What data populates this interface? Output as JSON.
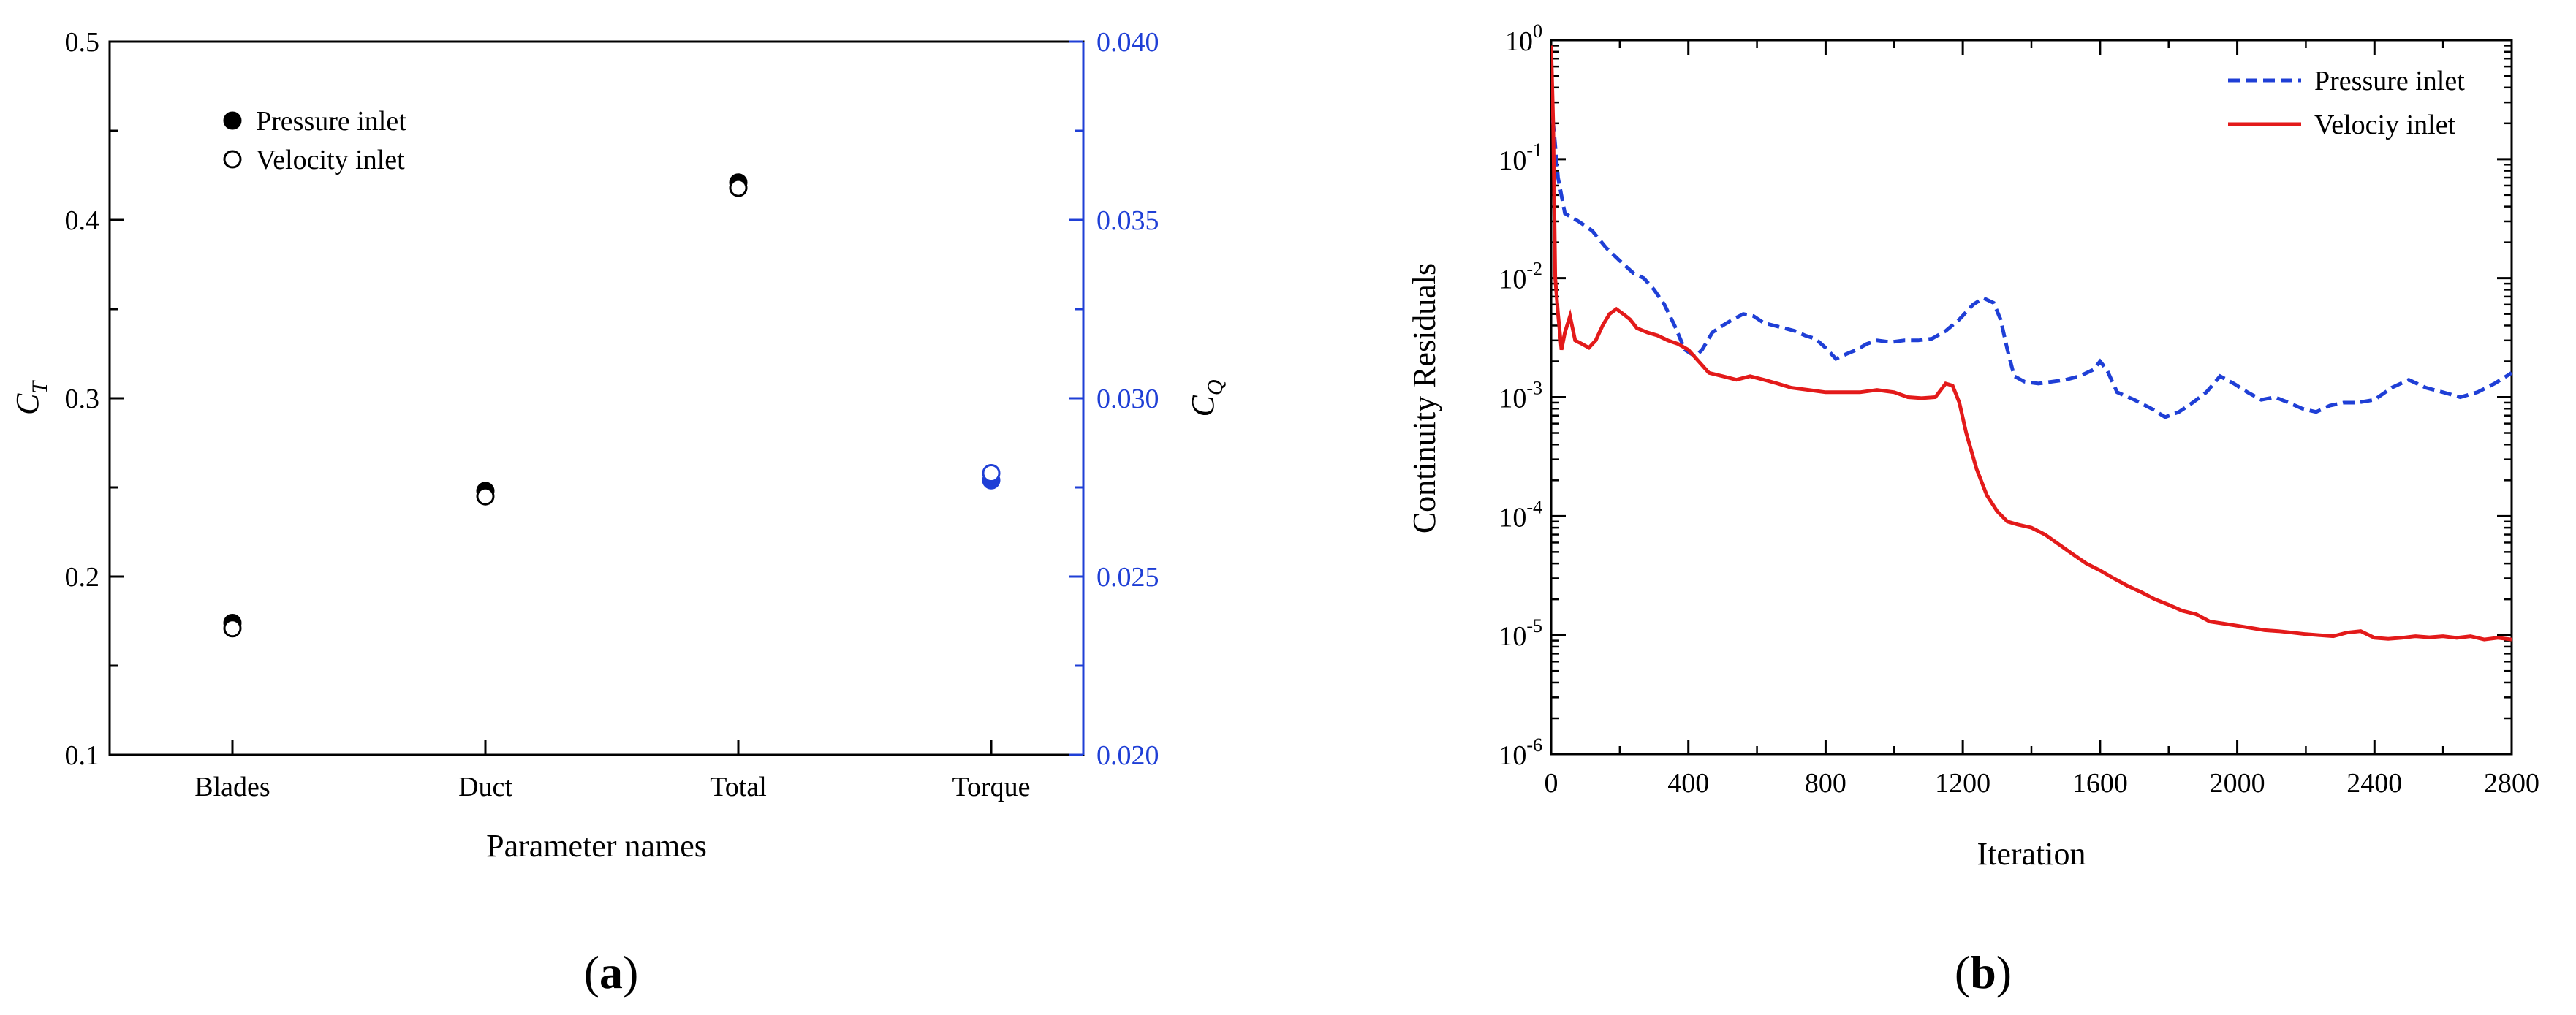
{
  "chart_data": [
    {
      "type": "scatter",
      "panel": "(a)",
      "panel_letter": "a",
      "xlabel": "Parameter names",
      "ylabel": "C",
      "ylabel_sub": "T",
      "y2label": "C",
      "y2label_sub": "Q",
      "categories": [
        "Blades",
        "Duct",
        "Total",
        "Torque"
      ],
      "ylim": [
        0.1,
        0.5
      ],
      "yticks": [
        "0.1",
        "0.2",
        "0.3",
        "0.4",
        "0.5"
      ],
      "y2lim": [
        0.02,
        0.04
      ],
      "y2ticks": [
        "0.020",
        "0.025",
        "0.030",
        "0.035",
        "0.040"
      ],
      "legend_position": "top-left",
      "series": [
        {
          "name": "Pressure inlet",
          "marker": "filled-circle",
          "points": [
            {
              "category": "Blades",
              "y": 0.174,
              "axis": "left"
            },
            {
              "category": "Duct",
              "y": 0.248,
              "axis": "left"
            },
            {
              "category": "Total",
              "y": 0.421,
              "axis": "left"
            },
            {
              "category": "Torque",
              "y": 0.0277,
              "axis": "right"
            }
          ]
        },
        {
          "name": "Velocity inlet",
          "marker": "open-circle",
          "points": [
            {
              "category": "Blades",
              "y": 0.171,
              "axis": "left"
            },
            {
              "category": "Duct",
              "y": 0.245,
              "axis": "left"
            },
            {
              "category": "Total",
              "y": 0.418,
              "axis": "left"
            },
            {
              "category": "Torque",
              "y": 0.0279,
              "axis": "right"
            }
          ]
        }
      ],
      "colors": {
        "left_axis": "#000000",
        "right_axis": "#1f3fd6",
        "torque_points": "#1f3fd6"
      }
    },
    {
      "type": "line",
      "panel": "(b)",
      "panel_letter": "b",
      "xlabel": "Iteration",
      "ylabel": "Continuity Residuals",
      "xlim": [
        0,
        2800
      ],
      "xticks": [
        "0",
        "400",
        "800",
        "1200",
        "1600",
        "2000",
        "2400",
        "2800"
      ],
      "yscale": "log",
      "ylim": [
        1e-06,
        1
      ],
      "ytick_exponents": [
        "-6",
        "-5",
        "-4",
        "-3",
        "-2",
        "-1",
        "0"
      ],
      "ytick_base": "10",
      "legend_position": "top-right",
      "series": [
        {
          "name": "Pressure inlet",
          "style": "dashed",
          "color": "#1f3fd6",
          "points": [
            [
              0,
              0.3
            ],
            [
              10,
              0.15
            ],
            [
              20,
              0.07
            ],
            [
              40,
              0.035
            ],
            [
              80,
              0.03
            ],
            [
              120,
              0.025
            ],
            [
              160,
              0.018
            ],
            [
              200,
              0.014
            ],
            [
              240,
              0.011
            ],
            [
              270,
              0.01
            ],
            [
              300,
              0.008
            ],
            [
              330,
              0.006
            ],
            [
              360,
              0.004
            ],
            [
              390,
              0.0025
            ],
            [
              420,
              0.0022
            ],
            [
              440,
              0.0025
            ],
            [
              470,
              0.0035
            ],
            [
              500,
              0.004
            ],
            [
              530,
              0.0045
            ],
            [
              560,
              0.005
            ],
            [
              590,
              0.0048
            ],
            [
              620,
              0.0042
            ],
            [
              650,
              0.004
            ],
            [
              680,
              0.0038
            ],
            [
              710,
              0.0036
            ],
            [
              740,
              0.0033
            ],
            [
              770,
              0.0031
            ],
            [
              800,
              0.0026
            ],
            [
              830,
              0.0021
            ],
            [
              860,
              0.0023
            ],
            [
              890,
              0.0025
            ],
            [
              920,
              0.0028
            ],
            [
              950,
              0.003
            ],
            [
              990,
              0.0029
            ],
            [
              1030,
              0.003
            ],
            [
              1070,
              0.003
            ],
            [
              1110,
              0.0031
            ],
            [
              1150,
              0.0036
            ],
            [
              1190,
              0.0045
            ],
            [
              1230,
              0.006
            ],
            [
              1260,
              0.0068
            ],
            [
              1290,
              0.0062
            ],
            [
              1310,
              0.0045
            ],
            [
              1330,
              0.0025
            ],
            [
              1350,
              0.0015
            ],
            [
              1380,
              0.00135
            ],
            [
              1420,
              0.0013
            ],
            [
              1460,
              0.00135
            ],
            [
              1500,
              0.0014
            ],
            [
              1540,
              0.0015
            ],
            [
              1580,
              0.0017
            ],
            [
              1600,
              0.002
            ],
            [
              1620,
              0.0017
            ],
            [
              1650,
              0.0011
            ],
            [
              1700,
              0.00095
            ],
            [
              1750,
              0.0008
            ],
            [
              1790,
              0.00068
            ],
            [
              1830,
              0.00075
            ],
            [
              1870,
              0.0009
            ],
            [
              1910,
              0.0011
            ],
            [
              1950,
              0.0015
            ],
            [
              1990,
              0.0013
            ],
            [
              2030,
              0.0011
            ],
            [
              2070,
              0.00095
            ],
            [
              2110,
              0.001
            ],
            [
              2150,
              0.0009
            ],
            [
              2190,
              0.0008
            ],
            [
              2230,
              0.00075
            ],
            [
              2270,
              0.00085
            ],
            [
              2310,
              0.0009
            ],
            [
              2350,
              0.0009
            ],
            [
              2400,
              0.00095
            ],
            [
              2450,
              0.0012
            ],
            [
              2500,
              0.0014
            ],
            [
              2550,
              0.0012
            ],
            [
              2600,
              0.0011
            ],
            [
              2650,
              0.001
            ],
            [
              2700,
              0.0011
            ],
            [
              2750,
              0.0013
            ],
            [
              2800,
              0.0016
            ]
          ]
        },
        {
          "name": "Velociy inlet",
          "style": "solid",
          "color": "#e31a1a",
          "points": [
            [
              0,
              0.9
            ],
            [
              6,
              0.2
            ],
            [
              12,
              0.01
            ],
            [
              20,
              0.005
            ],
            [
              30,
              0.0025
            ],
            [
              40,
              0.0035
            ],
            [
              55,
              0.0048
            ],
            [
              70,
              0.003
            ],
            [
              90,
              0.0028
            ],
            [
              110,
              0.0026
            ],
            [
              130,
              0.003
            ],
            [
              150,
              0.004
            ],
            [
              170,
              0.005
            ],
            [
              190,
              0.0055
            ],
            [
              210,
              0.005
            ],
            [
              230,
              0.0045
            ],
            [
              250,
              0.0038
            ],
            [
              280,
              0.0035
            ],
            [
              310,
              0.0033
            ],
            [
              340,
              0.003
            ],
            [
              370,
              0.0028
            ],
            [
              400,
              0.0025
            ],
            [
              430,
              0.002
            ],
            [
              460,
              0.0016
            ],
            [
              500,
              0.0015
            ],
            [
              540,
              0.0014
            ],
            [
              580,
              0.0015
            ],
            [
              620,
              0.0014
            ],
            [
              660,
              0.0013
            ],
            [
              700,
              0.0012
            ],
            [
              750,
              0.00115
            ],
            [
              800,
              0.0011
            ],
            [
              850,
              0.0011
            ],
            [
              900,
              0.0011
            ],
            [
              950,
              0.00115
            ],
            [
              1000,
              0.0011
            ],
            [
              1040,
              0.001
            ],
            [
              1080,
              0.00098
            ],
            [
              1120,
              0.001
            ],
            [
              1150,
              0.0013
            ],
            [
              1170,
              0.00125
            ],
            [
              1190,
              0.0009
            ],
            [
              1210,
              0.0005
            ],
            [
              1240,
              0.00025
            ],
            [
              1270,
              0.00015
            ],
            [
              1300,
              0.00011
            ],
            [
              1330,
              9e-05
            ],
            [
              1360,
              8.5e-05
            ],
            [
              1400,
              8e-05
            ],
            [
              1440,
              7e-05
            ],
            [
              1480,
              5.8e-05
            ],
            [
              1520,
              4.8e-05
            ],
            [
              1560,
              4e-05
            ],
            [
              1600,
              3.5e-05
            ],
            [
              1640,
              3e-05
            ],
            [
              1680,
              2.6e-05
            ],
            [
              1720,
              2.3e-05
            ],
            [
              1760,
              2e-05
            ],
            [
              1800,
              1.8e-05
            ],
            [
              1840,
              1.6e-05
            ],
            [
              1880,
              1.5e-05
            ],
            [
              1920,
              1.3e-05
            ],
            [
              1960,
              1.25e-05
            ],
            [
              2000,
              1.2e-05
            ],
            [
              2040,
              1.15e-05
            ],
            [
              2080,
              1.1e-05
            ],
            [
              2120,
              1.08e-05
            ],
            [
              2160,
              1.05e-05
            ],
            [
              2200,
              1.02e-05
            ],
            [
              2240,
              1e-05
            ],
            [
              2280,
              9.8e-06
            ],
            [
              2320,
              1.05e-05
            ],
            [
              2360,
              1.08e-05
            ],
            [
              2400,
              9.5e-06
            ],
            [
              2440,
              9.3e-06
            ],
            [
              2480,
              9.5e-06
            ],
            [
              2520,
              9.8e-06
            ],
            [
              2560,
              9.6e-06
            ],
            [
              2600,
              9.8e-06
            ],
            [
              2640,
              9.5e-06
            ],
            [
              2680,
              9.8e-06
            ],
            [
              2720,
              9.2e-06
            ],
            [
              2760,
              9.5e-06
            ],
            [
              2800,
              9.2e-06
            ]
          ]
        }
      ]
    }
  ]
}
